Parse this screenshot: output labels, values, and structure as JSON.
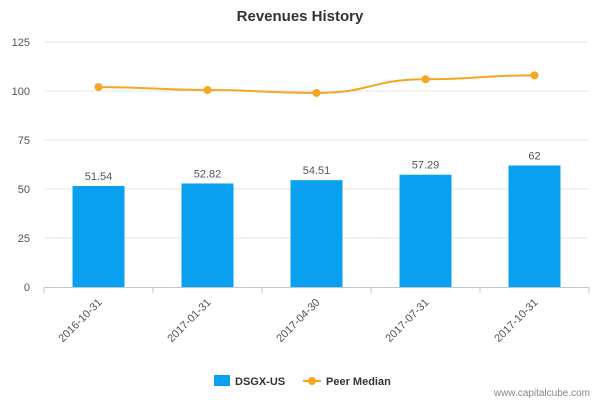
{
  "chart_data": {
    "type": "bar",
    "title": "Revenues History",
    "categories": [
      "2016-10-31",
      "2017-01-31",
      "2017-04-30",
      "2017-07-31",
      "2017-10-31"
    ],
    "series": [
      {
        "name": "DSGX-US",
        "type": "bar",
        "color": "#0aa0f0",
        "values": [
          51.54,
          52.82,
          54.51,
          57.29,
          62
        ],
        "labels": [
          "51.54",
          "52.82",
          "54.51",
          "57.29",
          "62"
        ]
      },
      {
        "name": "Peer Median",
        "type": "line",
        "color": "#f5a623",
        "values": [
          102,
          100.5,
          99,
          106,
          108
        ]
      }
    ],
    "ylim": [
      0,
      125
    ],
    "yticks": [
      "0",
      "25",
      "50",
      "75",
      "100",
      "125"
    ],
    "grid": true,
    "legend": "bottom-center"
  },
  "credit": "www.capitalcube.com"
}
